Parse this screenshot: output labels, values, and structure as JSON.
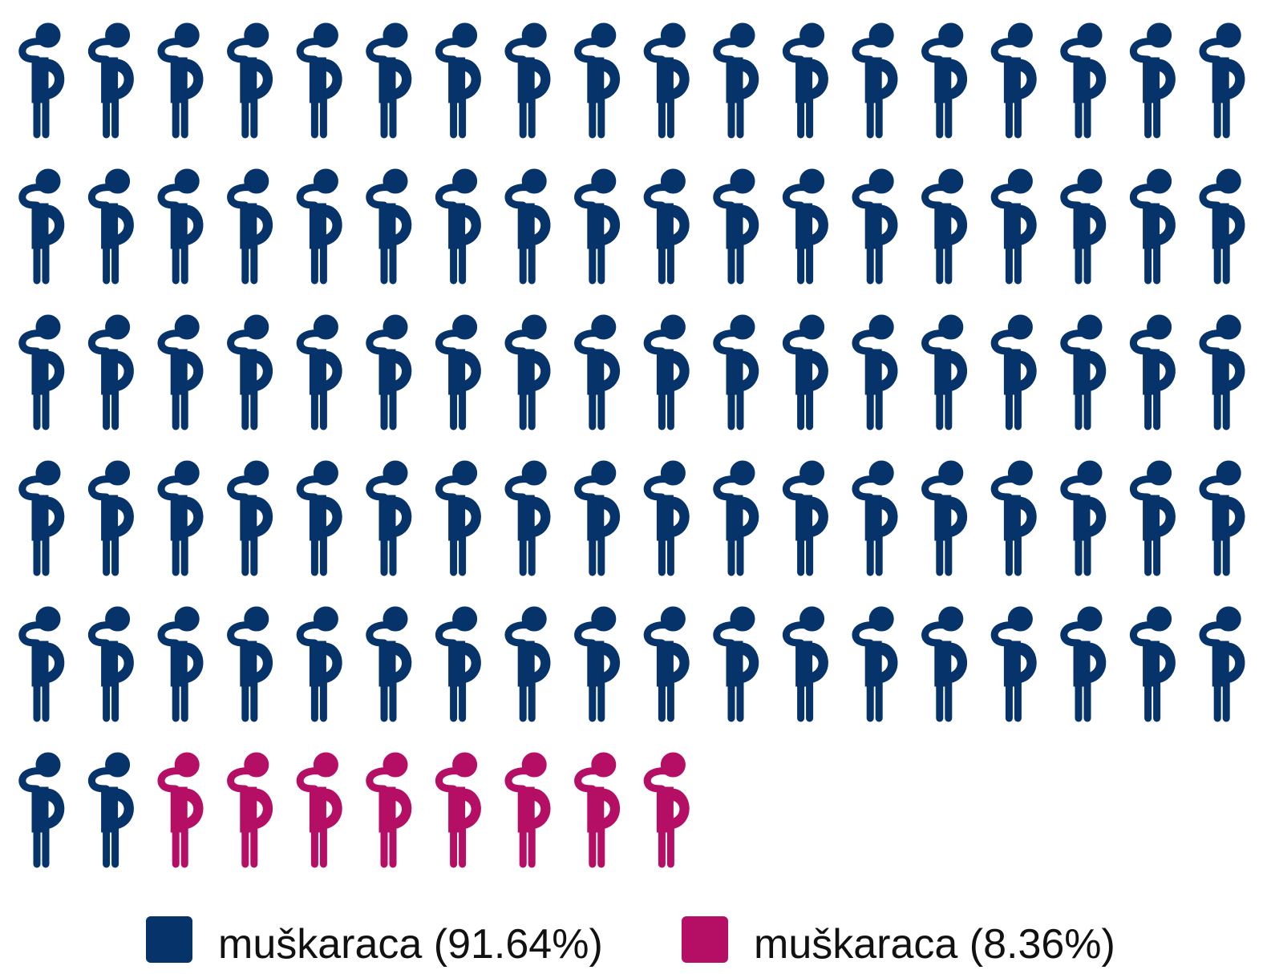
{
  "chart_data": {
    "type": "pictogram",
    "series": [
      {
        "name": "muškaraca (91.64%)",
        "color": "#063369",
        "values": [
          91.64
        ]
      },
      {
        "name": "muškaraca (8.36%)",
        "color": "#b50e65",
        "values": [
          8.36
        ]
      }
    ]
  }
}
